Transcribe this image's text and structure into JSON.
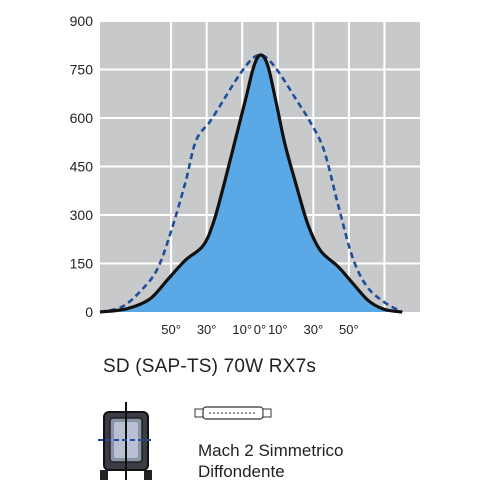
{
  "chart_data": {
    "type": "area",
    "yticks": [
      "0",
      "150",
      "300",
      "450",
      "600",
      "750",
      "900"
    ],
    "ylim": [
      0,
      900
    ],
    "xlim": [
      -90,
      90
    ],
    "xticks": [
      {
        "angle": -50,
        "label": "50°"
      },
      {
        "angle": -30,
        "label": "30°"
      },
      {
        "angle": -10,
        "label": "10°"
      },
      {
        "angle": 0,
        "label": "0°"
      },
      {
        "angle": 10,
        "label": "10°"
      },
      {
        "angle": 30,
        "label": "30°"
      },
      {
        "angle": 50,
        "label": "50°"
      }
    ],
    "grid": true,
    "series": [
      {
        "style": "solid",
        "color": "#111111",
        "fill": "#5aa9e6",
        "points": [
          [
            -90,
            0
          ],
          [
            -75,
            10
          ],
          [
            -62,
            40
          ],
          [
            -52,
            100
          ],
          [
            -42,
            160
          ],
          [
            -32,
            205
          ],
          [
            -26,
            280
          ],
          [
            -20,
            400
          ],
          [
            -14,
            530
          ],
          [
            -8,
            660
          ],
          [
            -4,
            750
          ],
          [
            -1,
            790
          ],
          [
            2,
            790
          ],
          [
            5,
            750
          ],
          [
            9,
            650
          ],
          [
            14,
            520
          ],
          [
            20,
            400
          ],
          [
            27,
            270
          ],
          [
            34,
            190
          ],
          [
            44,
            140
          ],
          [
            52,
            90
          ],
          [
            61,
            35
          ],
          [
            70,
            8
          ],
          [
            80,
            0
          ]
        ]
      },
      {
        "style": "dashed",
        "color": "#1f4e9a",
        "points": [
          [
            -90,
            0
          ],
          [
            -78,
            15
          ],
          [
            -68,
            60
          ],
          [
            -58,
            130
          ],
          [
            -50,
            250
          ],
          [
            -42,
            400
          ],
          [
            -36,
            530
          ],
          [
            -28,
            590
          ],
          [
            -20,
            660
          ],
          [
            -12,
            730
          ],
          [
            -5,
            780
          ],
          [
            0,
            795
          ],
          [
            5,
            780
          ],
          [
            12,
            730
          ],
          [
            20,
            660
          ],
          [
            28,
            590
          ],
          [
            36,
            500
          ],
          [
            44,
            330
          ],
          [
            52,
            170
          ],
          [
            60,
            80
          ],
          [
            70,
            30
          ],
          [
            80,
            0
          ]
        ]
      }
    ]
  },
  "lamp_title": "SD (SAP-TS) 70W  RX7s",
  "optic": {
    "line1": "Mach 2 Simmetrico",
    "line2": "Diffondente"
  },
  "colors": {
    "plot_background": "#c8c9cb",
    "grid": "#ffffff",
    "fill": "#5aa9e6",
    "solid_line": "#111111",
    "dashed_line": "#1f4e9a"
  },
  "icons": {
    "fixture": "floodlight-fixture-icon",
    "lamp": "linear-lamp-icon"
  }
}
